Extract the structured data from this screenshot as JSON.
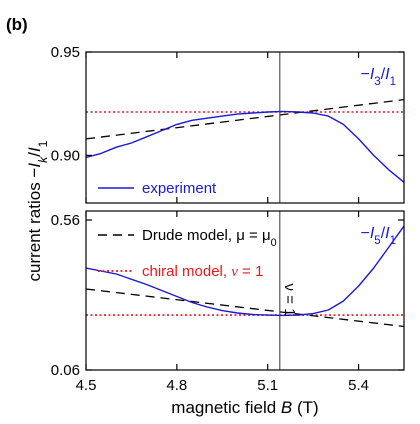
{
  "figure_label": "(b)",
  "chart_data": {
    "type": "line",
    "xlabel": "magnetic field B (T)",
    "ylabel": "current ratios −I_k/I_1",
    "xlim": [
      4.5,
      5.55
    ],
    "x_ticks": [
      {
        "value": 4.5,
        "label": "4.5"
      },
      {
        "value": 4.8,
        "label": "4.8"
      },
      {
        "value": 5.1,
        "label": "5.1"
      },
      {
        "value": 5.4,
        "label": "5.4"
      }
    ],
    "vline": {
      "x": 5.14,
      "label": "ν = 1"
    },
    "legend": [
      {
        "label": "experiment",
        "color": "#1a1ad6",
        "style": "solid"
      },
      {
        "label": "Drude model, μ = μ0",
        "color": "#000000",
        "style": "dashed"
      },
      {
        "label": "chiral model, ν = 1",
        "color": "#e41a1c",
        "style": "dotted"
      }
    ],
    "panels": [
      {
        "name": "top",
        "annotation": "−I3/I1",
        "ylim": [
          0.877,
          0.95
        ],
        "y_ticks": [
          {
            "value": 0.9,
            "label": "0.90"
          },
          {
            "value": 0.95,
            "label": "0.95"
          }
        ],
        "series": [
          {
            "name": "experiment",
            "x": [
              4.5,
              4.55,
              4.6,
              4.65,
              4.7,
              4.75,
              4.8,
              4.85,
              4.9,
              4.95,
              5.0,
              5.05,
              5.1,
              5.15,
              5.2,
              5.25,
              5.3,
              5.35,
              5.4,
              5.45,
              5.5,
              5.55
            ],
            "y": [
              0.899,
              0.901,
              0.904,
              0.906,
              0.909,
              0.912,
              0.915,
              0.917,
              0.918,
              0.919,
              0.92,
              0.9205,
              0.921,
              0.9213,
              0.921,
              0.9205,
              0.919,
              0.915,
              0.908,
              0.9,
              0.893,
              0.887
            ]
          },
          {
            "name": "Drude model",
            "x": [
              4.5,
              5.55
            ],
            "y": [
              0.908,
              0.927
            ]
          },
          {
            "name": "chiral model",
            "x": [
              4.5,
              5.55
            ],
            "y": [
              0.921,
              0.921
            ]
          }
        ]
      },
      {
        "name": "bottom",
        "annotation": "−I5/I1",
        "ylim": [
          0.06,
          0.59
        ],
        "y_ticks": [
          {
            "value": 0.06,
            "label": "0.06"
          },
          {
            "value": 0.56,
            "label": "0.56"
          }
        ],
        "series": [
          {
            "name": "experiment",
            "x": [
              4.5,
              4.6,
              4.7,
              4.8,
              4.85,
              4.9,
              4.95,
              5.0,
              5.05,
              5.1,
              5.15,
              5.2,
              5.25,
              5.3,
              5.35,
              5.4,
              5.45,
              5.5,
              5.55
            ],
            "y": [
              0.4,
              0.38,
              0.345,
              0.305,
              0.285,
              0.27,
              0.258,
              0.25,
              0.245,
              0.243,
              0.242,
              0.243,
              0.248,
              0.26,
              0.29,
              0.34,
              0.4,
              0.47,
              0.54
            ]
          },
          {
            "name": "Drude model",
            "x": [
              4.5,
              5.55
            ],
            "y": [
              0.33,
              0.205
            ]
          },
          {
            "name": "chiral model",
            "x": [
              4.5,
              5.55
            ],
            "y": [
              0.243,
              0.243
            ]
          }
        ]
      }
    ]
  }
}
